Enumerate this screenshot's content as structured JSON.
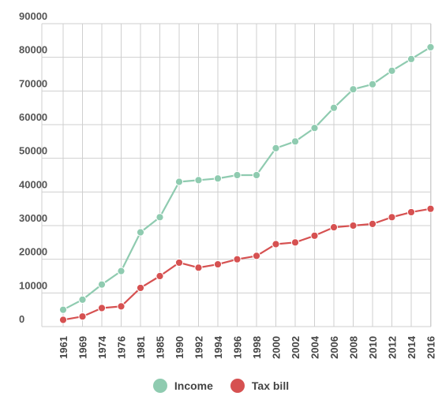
{
  "chart_data": {
    "type": "line",
    "categories": [
      "1961",
      "1969",
      "1974",
      "1976",
      "1981",
      "1985",
      "1990",
      "1992",
      "1994",
      "1996",
      "1998",
      "2000",
      "2002",
      "2004",
      "2006",
      "2008",
      "2010",
      "2012",
      "2014",
      "2016"
    ],
    "series": [
      {
        "name": "Income",
        "color": "#8fcbb0",
        "values": [
          5000,
          8000,
          12500,
          16500,
          28000,
          32500,
          43000,
          43500,
          44000,
          45000,
          45000,
          53000,
          55000,
          59000,
          65000,
          70500,
          72000,
          76000,
          79500,
          83000
        ]
      },
      {
        "name": "Tax bill",
        "color": "#d65151",
        "values": [
          2000,
          3000,
          5500,
          6000,
          11500,
          15000,
          19000,
          17500,
          18500,
          20000,
          21000,
          24500,
          25000,
          27000,
          29500,
          30000,
          30500,
          32500,
          34000,
          35000
        ]
      }
    ],
    "yticks": [
      0,
      10000,
      20000,
      30000,
      40000,
      50000,
      60000,
      70000,
      80000,
      90000
    ],
    "ylim": [
      0,
      90000
    ],
    "grid": true,
    "legend_position": "bottom-center"
  }
}
